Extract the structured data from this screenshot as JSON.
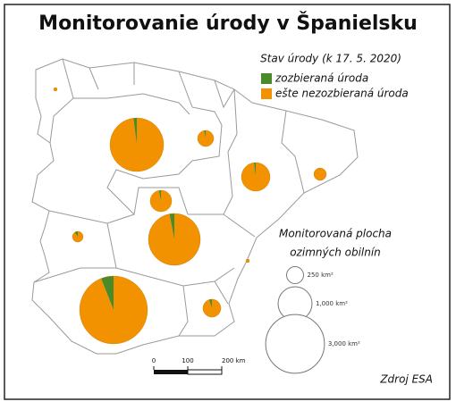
{
  "title": "Monitorovanie úrody v Španielsku",
  "legend": {
    "title": "Stav úrody (k 17. 5. 2020)",
    "items": [
      {
        "label": "zozbieraná úroda",
        "color": "#4a8a2a"
      },
      {
        "label": "ešte nezozbieraná úroda",
        "color": "#f39200"
      }
    ]
  },
  "size_legend": {
    "title_lines": [
      "Monitorovaná plocha",
      "ozimných obilnín"
    ],
    "items": [
      {
        "value": 250,
        "label": "250 km²"
      },
      {
        "value": 1000,
        "label": "1,000 km²"
      },
      {
        "value": 3000,
        "label": "3,000 km²"
      }
    ]
  },
  "scale_bar": {
    "ticks": [
      0,
      100,
      {
        "value": 200,
        "label": "200 km"
      }
    ]
  },
  "source": "Zdroj ESA",
  "regions": [
    {
      "area": 11,
      "values": [
        2,
        98
      ]
    },
    {
      "area": 2500,
      "values": [
        2,
        98
      ]
    },
    {
      "area": 225,
      "values": [
        3,
        97
      ]
    },
    {
      "area": 710,
      "values": [
        2,
        98
      ]
    },
    {
      "area": 136,
      "values": [
        1,
        99
      ]
    },
    {
      "area": 400,
      "values": [
        3,
        97
      ]
    },
    {
      "area": 2340,
      "values": [
        3,
        97
      ]
    },
    {
      "area": 100,
      "values": [
        10,
        90
      ]
    },
    {
      "area": 11,
      "values": [
        2,
        98
      ]
    },
    {
      "area": 4000,
      "values": [
        6,
        94
      ]
    },
    {
      "area": 280,
      "values": [
        5,
        95
      ]
    }
  ]
}
